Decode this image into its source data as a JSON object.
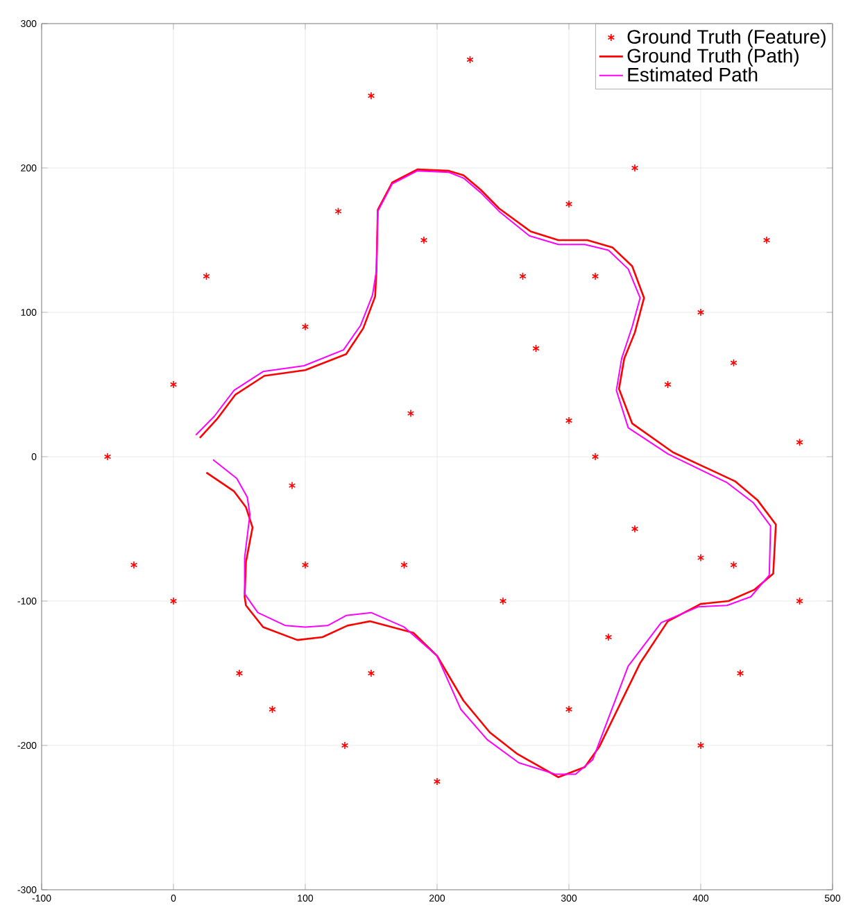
{
  "chart_data": {
    "type": "line",
    "xlim": [
      -100,
      500
    ],
    "ylim": [
      -300,
      300
    ],
    "xticks": [
      -100,
      0,
      100,
      200,
      300,
      400,
      500
    ],
    "yticks": [
      -300,
      -200,
      -100,
      0,
      100,
      200,
      300
    ],
    "grid": true,
    "legend": "top right",
    "series": [
      {
        "name": "Ground Truth (Feature)",
        "type": "scatter",
        "marker": "cross",
        "color": "#ff0000",
        "x": [
          225,
          150,
          350,
          300,
          125,
          190,
          450,
          25,
          265,
          320,
          400,
          100,
          275,
          425,
          0,
          375,
          180,
          300,
          475,
          -50,
          320,
          90,
          350,
          400,
          -30,
          100,
          175,
          425,
          0,
          250,
          475,
          330,
          50,
          150,
          430,
          75,
          300,
          130,
          400,
          200
        ],
        "values": [
          275,
          250,
          200,
          175,
          170,
          150,
          150,
          125,
          125,
          125,
          100,
          90,
          75,
          65,
          50,
          50,
          30,
          25,
          10,
          0,
          0,
          -20,
          -50,
          -70,
          -75,
          -75,
          -75,
          -75,
          -100,
          -100,
          -100,
          -125,
          -150,
          -150,
          -150,
          -175,
          -175,
          -200,
          -200,
          -225
        ]
      },
      {
        "name": "Ground Truth (Path)",
        "marker": "none",
        "line_style": "solid",
        "color": "#ff0000",
        "x": [
          25,
          46,
          55,
          60,
          55,
          54,
          55,
          68,
          94,
          113,
          132,
          149,
          182,
          200,
          220,
          240,
          261,
          292,
          312,
          323,
          354,
          375,
          400,
          421,
          441,
          455,
          457,
          443,
          426,
          379,
          348,
          338,
          342,
          350,
          357,
          348,
          333,
          314,
          292,
          271,
          247,
          233,
          220,
          209,
          185,
          166,
          155,
          154,
          153,
          144,
          131,
          100,
          69,
          47,
          33,
          20
        ],
        "values": [
          -11,
          -24,
          -35,
          -49,
          -73,
          -97,
          -103,
          -118,
          -127,
          -125,
          -117,
          -114,
          -122,
          -138,
          -169,
          -191,
          -206,
          -222,
          -215,
          -201,
          -143,
          -114,
          -102,
          -100,
          -92,
          -81,
          -47,
          -30,
          -17,
          3,
          23,
          47,
          68,
          86,
          110,
          132,
          145,
          150,
          150,
          156,
          172,
          185,
          195,
          198,
          199,
          190,
          171,
          129,
          111,
          89,
          71,
          60,
          56,
          43,
          26,
          13
        ]
      },
      {
        "name": "Estimated Path",
        "marker": "none",
        "line_style": "solid",
        "color": "#ff00ff",
        "x": [
          30,
          48,
          56,
          58,
          54,
          54,
          64,
          85,
          100,
          117,
          131,
          150,
          175,
          200,
          218,
          238,
          262,
          290,
          305,
          318,
          345,
          370,
          398,
          420,
          438,
          452,
          453,
          440,
          420,
          375,
          345,
          336,
          340,
          348,
          354,
          345,
          330,
          312,
          292,
          270,
          247,
          233,
          220,
          209,
          185,
          166,
          155,
          154,
          151,
          142,
          129,
          99,
          68,
          46,
          31,
          17
        ],
        "values": [
          -2,
          -15,
          -28,
          -40,
          -70,
          -95,
          -108,
          -117,
          -118,
          -117,
          -110,
          -108,
          -118,
          -138,
          -175,
          -196,
          -212,
          -220,
          -220,
          -210,
          -145,
          -115,
          -104,
          -103,
          -97,
          -82,
          -48,
          -32,
          -18,
          2,
          20,
          46,
          68,
          90,
          110,
          130,
          143,
          147,
          147,
          153,
          170,
          183,
          193,
          197,
          198,
          189,
          170,
          129,
          112,
          91,
          74,
          63,
          59,
          46,
          28,
          15
        ]
      }
    ]
  }
}
